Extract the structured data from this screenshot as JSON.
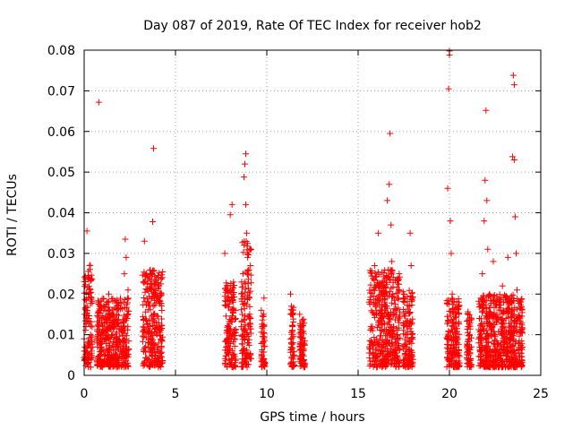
{
  "chart_data": {
    "type": "scatter",
    "title": "Day 087 of 2019, Rate Of TEC Index for receiver hob2",
    "xlabel": "GPS time / hours",
    "ylabel": "ROTI / TECUs",
    "xlim": [
      0,
      25
    ],
    "ylim": [
      0,
      0.08
    ],
    "x_ticks": [
      0,
      5,
      10,
      15,
      20,
      25
    ],
    "x_tick_labels": [
      "0",
      "5",
      "10",
      "15",
      "20",
      "25"
    ],
    "y_ticks": [
      0,
      0.01,
      0.02,
      0.03,
      0.04,
      0.05,
      0.06,
      0.07,
      0.08
    ],
    "y_tick_labels": [
      "0",
      "0.01",
      "0.02",
      "0.03",
      "0.04",
      "0.05",
      "0.06",
      "0.07",
      "0.08"
    ],
    "grid": true,
    "marker": "+",
    "color": "#ff0000",
    "series": [
      {
        "name": "hob2",
        "points": [
          [
            0.0,
            0.009
          ],
          [
            0.05,
            0.006
          ],
          [
            0.1,
            0.012
          ],
          [
            0.1,
            0.004
          ],
          [
            0.15,
            0.017
          ],
          [
            0.2,
            0.008
          ],
          [
            0.2,
            0.024
          ],
          [
            0.25,
            0.014
          ],
          [
            0.3,
            0.027
          ],
          [
            0.3,
            0.005
          ],
          [
            0.15,
            0.0355
          ],
          [
            0.35,
            0.01
          ],
          [
            0.4,
            0.019
          ],
          [
            0.45,
            0.007
          ],
          [
            0.8,
            0.0672
          ],
          [
            0.7,
            0.008
          ],
          [
            0.75,
            0.004
          ],
          [
            0.85,
            0.013
          ],
          [
            0.95,
            0.006
          ],
          [
            1.0,
            0.011
          ],
          [
            1.1,
            0.003
          ],
          [
            1.2,
            0.009
          ],
          [
            1.3,
            0.016
          ],
          [
            1.35,
            0.02
          ],
          [
            1.4,
            0.012
          ],
          [
            1.5,
            0.005
          ],
          [
            1.55,
            0.01
          ],
          [
            1.6,
            0.015
          ],
          [
            1.7,
            0.003
          ],
          [
            1.8,
            0.009
          ],
          [
            1.9,
            0.013
          ],
          [
            2.0,
            0.006
          ],
          [
            2.05,
            0.011
          ],
          [
            2.15,
            0.018
          ],
          [
            2.2,
            0.025
          ],
          [
            2.25,
            0.0335
          ],
          [
            2.3,
            0.029
          ],
          [
            2.3,
            0.008
          ],
          [
            2.35,
            0.014
          ],
          [
            2.4,
            0.021
          ],
          [
            3.3,
            0.033
          ],
          [
            3.4,
            0.025
          ],
          [
            3.5,
            0.018
          ],
          [
            3.5,
            0.008
          ],
          [
            3.6,
            0.011
          ],
          [
            3.7,
            0.005
          ],
          [
            3.75,
            0.0378
          ],
          [
            3.8,
            0.0558
          ],
          [
            3.8,
            0.015
          ],
          [
            3.9,
            0.02
          ],
          [
            4.0,
            0.007
          ],
          [
            4.1,
            0.012
          ],
          [
            4.2,
            0.0225
          ],
          [
            4.1,
            0.004
          ],
          [
            7.7,
            0.03
          ],
          [
            7.8,
            0.021
          ],
          [
            7.9,
            0.012
          ],
          [
            7.9,
            0.006
          ],
          [
            8.0,
            0.0395
          ],
          [
            8.1,
            0.042
          ],
          [
            8.15,
            0.018
          ],
          [
            8.2,
            0.009
          ],
          [
            8.3,
            0.004
          ],
          [
            8.3,
            0.014
          ],
          [
            8.6,
            0.012
          ],
          [
            8.7,
            0.025
          ],
          [
            8.75,
            0.0488
          ],
          [
            8.8,
            0.052
          ],
          [
            8.85,
            0.0545
          ],
          [
            8.85,
            0.042
          ],
          [
            8.9,
            0.035
          ],
          [
            8.95,
            0.029
          ],
          [
            9.0,
            0.008
          ],
          [
            9.05,
            0.019
          ],
          [
            9.1,
            0.005
          ],
          [
            9.1,
            0.014
          ],
          [
            9.7,
            0.016
          ],
          [
            9.75,
            0.012
          ],
          [
            9.8,
            0.008
          ],
          [
            9.85,
            0.004
          ],
          [
            9.9,
            0.003
          ],
          [
            9.85,
            0.019
          ],
          [
            11.3,
            0.02
          ],
          [
            11.35,
            0.017
          ],
          [
            11.4,
            0.012
          ],
          [
            11.45,
            0.008
          ],
          [
            11.5,
            0.005
          ],
          [
            11.45,
            0.004
          ],
          [
            11.8,
            0.015
          ],
          [
            11.9,
            0.012
          ],
          [
            11.95,
            0.009
          ],
          [
            12.0,
            0.006
          ],
          [
            12.05,
            0.003
          ],
          [
            15.6,
            0.018
          ],
          [
            15.7,
            0.012
          ],
          [
            15.8,
            0.005
          ],
          [
            15.9,
            0.027
          ],
          [
            16.0,
            0.015
          ],
          [
            16.05,
            0.008
          ],
          [
            16.1,
            0.035
          ],
          [
            16.2,
            0.022
          ],
          [
            16.3,
            0.011
          ],
          [
            16.4,
            0.004
          ],
          [
            16.45,
            0.018
          ],
          [
            16.6,
            0.043
          ],
          [
            16.7,
            0.047
          ],
          [
            16.75,
            0.0595
          ],
          [
            16.8,
            0.037
          ],
          [
            16.85,
            0.028
          ],
          [
            16.9,
            0.02
          ],
          [
            16.95,
            0.012
          ],
          [
            17.0,
            0.006
          ],
          [
            17.05,
            0.016
          ],
          [
            17.15,
            0.009
          ],
          [
            17.2,
            0.003
          ],
          [
            17.25,
            0.025
          ],
          [
            17.5,
            0.02
          ],
          [
            17.6,
            0.013
          ],
          [
            17.65,
            0.007
          ],
          [
            17.7,
            0.004
          ],
          [
            17.8,
            0.017
          ],
          [
            17.85,
            0.035
          ],
          [
            17.9,
            0.027
          ],
          [
            17.95,
            0.01
          ],
          [
            19.9,
            0.046
          ],
          [
            19.95,
            0.0705
          ],
          [
            20.0,
            0.0788
          ],
          [
            20.0,
            0.0798
          ],
          [
            20.05,
            0.038
          ],
          [
            20.1,
            0.03
          ],
          [
            20.15,
            0.02
          ],
          [
            20.2,
            0.012
          ],
          [
            20.25,
            0.006
          ],
          [
            20.3,
            0.003
          ],
          [
            20.35,
            0.015
          ],
          [
            20.45,
            0.009
          ],
          [
            20.5,
            0.018
          ],
          [
            21.0,
            0.015
          ],
          [
            21.1,
            0.01
          ],
          [
            21.15,
            0.004
          ],
          [
            21.2,
            0.007
          ],
          [
            21.6,
            0.009
          ],
          [
            21.7,
            0.017
          ],
          [
            21.8,
            0.025
          ],
          [
            21.9,
            0.038
          ],
          [
            21.95,
            0.048
          ],
          [
            22.0,
            0.0652
          ],
          [
            22.05,
            0.043
          ],
          [
            22.1,
            0.031
          ],
          [
            22.2,
            0.02
          ],
          [
            22.25,
            0.012
          ],
          [
            22.3,
            0.005
          ],
          [
            22.4,
            0.028
          ],
          [
            22.5,
            0.01
          ],
          [
            22.6,
            0.015
          ],
          [
            22.9,
            0.022
          ],
          [
            23.0,
            0.008
          ],
          [
            23.1,
            0.014
          ],
          [
            23.2,
            0.029
          ],
          [
            23.3,
            0.004
          ],
          [
            23.4,
            0.012
          ],
          [
            23.45,
            0.0538
          ],
          [
            23.5,
            0.0738
          ],
          [
            23.55,
            0.0715
          ],
          [
            23.55,
            0.053
          ],
          [
            23.6,
            0.039
          ],
          [
            23.65,
            0.03
          ],
          [
            23.7,
            0.021
          ],
          [
            23.75,
            0.014
          ],
          [
            23.8,
            0.008
          ],
          [
            23.85,
            0.003
          ],
          [
            23.9,
            0.018
          ],
          [
            23.95,
            0.011
          ]
        ],
        "dense_bands": [
          {
            "x": [
              0.0,
              0.45
            ],
            "y_max": 0.028
          },
          {
            "x": [
              0.7,
              2.45
            ],
            "y_max": 0.019
          },
          {
            "x": [
              3.2,
              4.3
            ],
            "y_max": 0.026
          },
          {
            "x": [
              7.7,
              8.3
            ],
            "y_max": 0.023
          },
          {
            "x": [
              8.6,
              9.15
            ],
            "y_max": 0.033
          },
          {
            "x": [
              9.7,
              9.9
            ],
            "y_max": 0.016
          },
          {
            "x": [
              11.3,
              11.5
            ],
            "y_max": 0.017
          },
          {
            "x": [
              11.8,
              12.1
            ],
            "y_max": 0.014
          },
          {
            "x": [
              15.6,
              17.3
            ],
            "y_max": 0.026
          },
          {
            "x": [
              17.45,
              18.0
            ],
            "y_max": 0.021
          },
          {
            "x": [
              19.85,
              20.55
            ],
            "y_max": 0.019
          },
          {
            "x": [
              20.95,
              21.2
            ],
            "y_max": 0.016
          },
          {
            "x": [
              21.6,
              23.4
            ],
            "y_max": 0.02
          },
          {
            "x": [
              23.4,
              24.0
            ],
            "y_max": 0.02
          }
        ]
      }
    ]
  }
}
